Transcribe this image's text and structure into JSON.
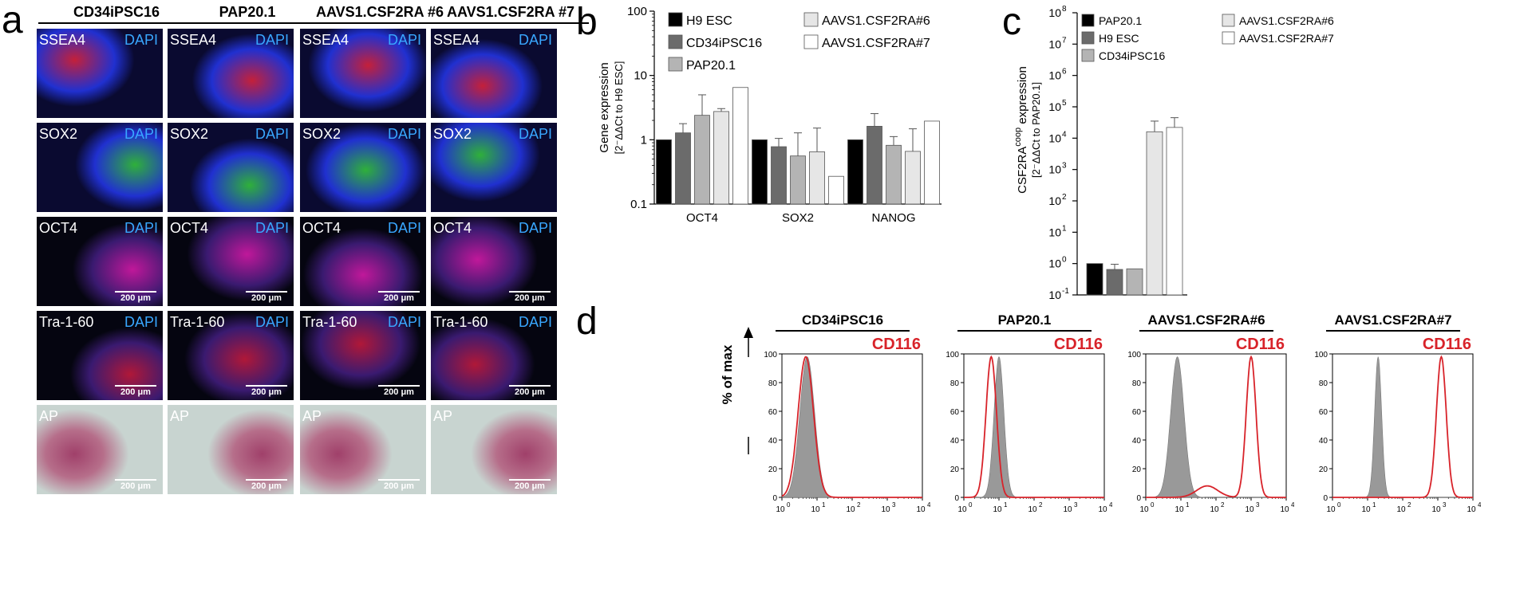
{
  "panel_a": {
    "label": "a",
    "columns": [
      "CD34iPSC16",
      "PAP20.1",
      "AAVS1.CSF2RA #6",
      "AAVS1.CSF2RA #7"
    ],
    "rows": [
      {
        "marker": "SSEA4",
        "counterstain": "DAPI",
        "scale_bar": ""
      },
      {
        "marker": "SOX2",
        "counterstain": "DAPI",
        "scale_bar": ""
      },
      {
        "marker": "OCT4",
        "counterstain": "DAPI",
        "scale_bar": "200 μm"
      },
      {
        "marker": "Tra-1-60",
        "counterstain": "DAPI",
        "scale_bar": "200 μm"
      },
      {
        "marker": "AP",
        "counterstain": "",
        "scale_bar": "200 μm"
      }
    ],
    "colors": {
      "ssea4": "#c4203a",
      "sox2": "#2fb03a",
      "oct4": "#c0189a",
      "tra": "#b01838",
      "dapi": "#2030d0",
      "ap": "#a0406a",
      "apbg": "#c8d4d0"
    }
  },
  "panel_b": {
    "label": "b",
    "chart_data": {
      "type": "bar",
      "ylabel_main": "Gene expression",
      "ylabel_sub": "[2⁻ΔΔCt to H9 ESC]",
      "yscale": "log",
      "ylim": [
        0.1,
        100
      ],
      "ytick_labels": [
        "0.1",
        "1",
        "10",
        "100"
      ],
      "categories": [
        "OCT4",
        "SOX2",
        "NANOG"
      ],
      "series": [
        {
          "name": "H9 ESC",
          "color": "#000000",
          "values": [
            1.0,
            1.0,
            1.0
          ],
          "err": [
            1.0,
            1.0,
            1.0
          ]
        },
        {
          "name": "CD34iPSC16",
          "color": "#6b6b6b",
          "values": [
            1.28,
            0.78,
            1.62
          ],
          "err": [
            1.78,
            1.05,
            2.55
          ]
        },
        {
          "name": "PAP20.1",
          "color": "#b4b4b4",
          "values": [
            2.4,
            0.56,
            0.82
          ],
          "err": [
            5.0,
            1.28,
            1.12
          ]
        },
        {
          "name": "AAVS1.CSF2RA#6",
          "color": "#e6e6e6",
          "values": [
            2.75,
            0.65,
            0.66
          ],
          "err": [
            3.05,
            1.52,
            1.48
          ]
        },
        {
          "name": "AAVS1.CSF2RA#7",
          "color": "#ffffff",
          "values": [
            6.5,
            0.27,
            1.95
          ],
          "err": [
            6.5,
            0.27,
            1.95
          ]
        }
      ],
      "legend_placement": "top"
    }
  },
  "panel_c": {
    "label": "c",
    "chart_data": {
      "type": "bar",
      "ylabel_main": "CSF2RA",
      "ylabel_sup": "coop",
      "ylabel_tail": " expression",
      "ylabel_sub": "[2⁻ΔΔCt to PAP20.1]",
      "yscale": "log",
      "ylim": [
        0.1,
        100000000
      ],
      "ytick_exponents": [
        -1,
        0,
        1,
        2,
        3,
        4,
        5,
        6,
        7,
        8
      ],
      "series": [
        {
          "name": "PAP20.1",
          "color": "#000000",
          "value": 1.0,
          "err": 1.0
        },
        {
          "name": "H9 ESC",
          "color": "#6b6b6b",
          "value": 0.65,
          "err": 0.95
        },
        {
          "name": "CD34iPSC16",
          "color": "#b4b4b4",
          "value": 0.68,
          "err": 0.68
        },
        {
          "name": "AAVS1.CSF2RA#6",
          "color": "#e6e6e6",
          "value": 16000,
          "err": 35000
        },
        {
          "name": "AAVS1.CSF2RA#7",
          "color": "#ffffff",
          "value": 22000,
          "err": 45000
        }
      ],
      "legend_placement": "top"
    }
  },
  "panel_d": {
    "label": "d",
    "ylabel": "% of max",
    "marker": "CD116",
    "marker_color": "#d8232a",
    "isotype_color": "#999999",
    "chart_data": {
      "type": "area",
      "xscale": "log",
      "xlim": [
        1,
        10000
      ],
      "ylim": [
        0,
        100
      ],
      "ytick_labels": [
        "0",
        "20",
        "40",
        "60",
        "80",
        "100"
      ],
      "xtick_exponents": [
        0,
        1,
        2,
        3,
        4
      ],
      "plots": [
        {
          "title": "CD34iPSC16",
          "isotype_peak_log": 0.72,
          "isotype_width": 0.21,
          "stain_peaks": [
            {
              "log": 0.68,
              "width": 0.22,
              "height": 98
            }
          ]
        },
        {
          "title": "PAP20.1",
          "isotype_peak_log": 1.0,
          "isotype_width": 0.14,
          "stain_peaks": [
            {
              "log": 0.78,
              "width": 0.15,
              "height": 98
            }
          ]
        },
        {
          "title": "AAVS1.CSF2RA#6",
          "isotype_peak_log": 0.9,
          "isotype_width": 0.19,
          "stain_peaks": [
            {
              "log": 1.75,
              "width": 0.3,
              "height": 8
            },
            {
              "log": 3.0,
              "width": 0.14,
              "height": 98
            }
          ]
        },
        {
          "title": "AAVS1.CSF2RA#7",
          "isotype_peak_log": 1.3,
          "isotype_width": 0.1,
          "stain_peaks": [
            {
              "log": 3.1,
              "width": 0.14,
              "height": 98
            }
          ]
        }
      ]
    }
  }
}
